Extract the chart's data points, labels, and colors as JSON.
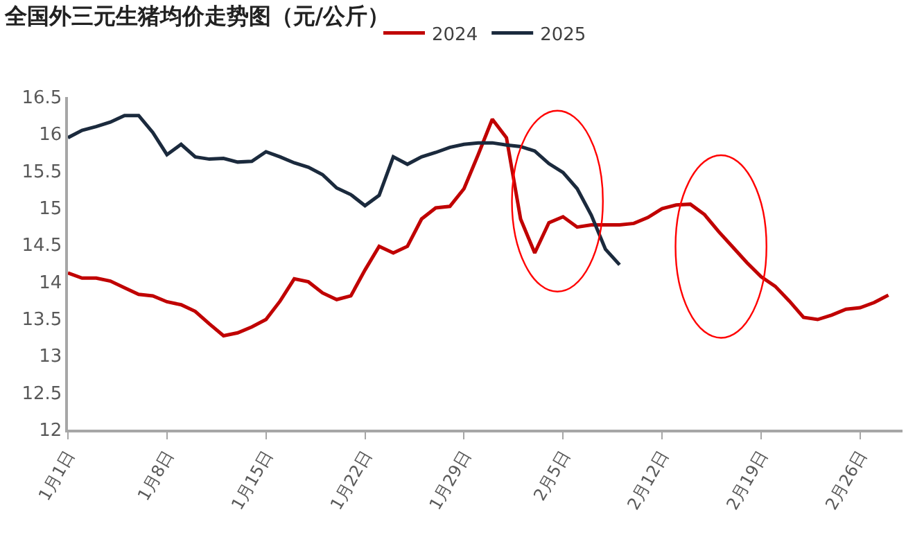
{
  "chart_data": {
    "type": "line",
    "title": "全国外三元生猪均价走势图（元/公斤）",
    "x": [
      "--01-01",
      "--01-02",
      "--01-03",
      "--01-04",
      "--01-05",
      "--01-06",
      "--01-07",
      "--01-08",
      "--01-09",
      "--01-10",
      "--01-11",
      "--01-12",
      "--01-13",
      "--01-14",
      "--01-15",
      "--01-16",
      "--01-17",
      "--01-18",
      "--01-19",
      "--01-20",
      "--01-21",
      "--01-22",
      "--01-23",
      "--01-24",
      "--01-25",
      "--01-26",
      "--01-27",
      "--01-28",
      "--01-29",
      "--01-30",
      "--01-31",
      "--02-01",
      "--02-02",
      "--02-03",
      "--02-04",
      "--02-05",
      "--02-06",
      "--02-07",
      "--02-08",
      "--02-09",
      "--02-10",
      "--02-11",
      "--02-12",
      "--02-13",
      "--02-14",
      "--02-15",
      "--02-16",
      "--02-17",
      "--02-18",
      "--02-19",
      "--02-20",
      "--02-21",
      "--02-22",
      "--02-23",
      "--02-24",
      "--02-25",
      "--02-26",
      "--02-27",
      "--02-28"
    ],
    "series": [
      {
        "name": "2024",
        "color": "#c00000",
        "values": [
          14.12,
          14.05,
          14.05,
          14.01,
          13.92,
          13.83,
          13.81,
          13.73,
          13.69,
          13.6,
          13.43,
          13.27,
          13.31,
          13.39,
          13.49,
          13.74,
          14.04,
          14.0,
          13.85,
          13.76,
          13.81,
          14.16,
          14.48,
          14.39,
          14.48,
          14.85,
          15.0,
          15.02,
          15.26,
          15.72,
          16.2,
          15.95,
          14.85,
          14.39,
          14.8,
          14.88,
          14.74,
          14.77,
          14.77,
          14.77,
          14.79,
          14.87,
          14.99,
          15.04,
          15.05,
          14.91,
          14.68,
          14.47,
          14.26,
          14.07,
          13.94,
          13.74,
          13.52,
          13.49,
          13.55,
          13.63,
          13.65,
          13.72,
          13.82
        ]
      },
      {
        "name": "2025",
        "color": "#1b2a3d",
        "values": [
          15.95,
          16.05,
          16.1,
          16.16,
          16.25,
          16.25,
          16.02,
          15.72,
          15.86,
          15.69,
          15.66,
          15.67,
          15.62,
          15.63,
          15.76,
          15.69,
          15.61,
          15.55,
          15.45,
          15.27,
          15.18,
          15.03,
          15.17,
          15.69,
          15.59,
          15.69,
          15.75,
          15.82,
          15.86,
          15.88,
          15.88,
          15.85,
          15.83,
          15.77,
          15.6,
          15.48,
          15.26,
          14.9,
          14.44,
          14.23,
          null,
          null,
          null,
          null,
          null,
          null,
          null,
          null,
          null,
          null,
          null,
          null,
          null,
          null,
          null,
          null,
          null,
          null,
          null
        ]
      }
    ],
    "xlim": [
      "--01-01",
      "--02-29"
    ],
    "xticks": [
      {
        "value": "--01-01",
        "label": "1月1日"
      },
      {
        "value": "--01-08",
        "label": "1月8日"
      },
      {
        "value": "--01-15",
        "label": "1月15日"
      },
      {
        "value": "--01-22",
        "label": "1月22日"
      },
      {
        "value": "--01-29",
        "label": "1月29日"
      },
      {
        "value": "--02-05",
        "label": "2月5日"
      },
      {
        "value": "--02-12",
        "label": "2月12日"
      },
      {
        "value": "--02-19",
        "label": "2月19日"
      },
      {
        "value": "--02-26",
        "label": "2月26日"
      }
    ],
    "ylim": [
      12,
      16.5
    ],
    "yticks": [
      12,
      12.5,
      13,
      13.5,
      14,
      14.5,
      15,
      15.5,
      16,
      16.5
    ],
    "legend": "top",
    "grid": false,
    "marker": "none",
    "line_style": "solid"
  }
}
